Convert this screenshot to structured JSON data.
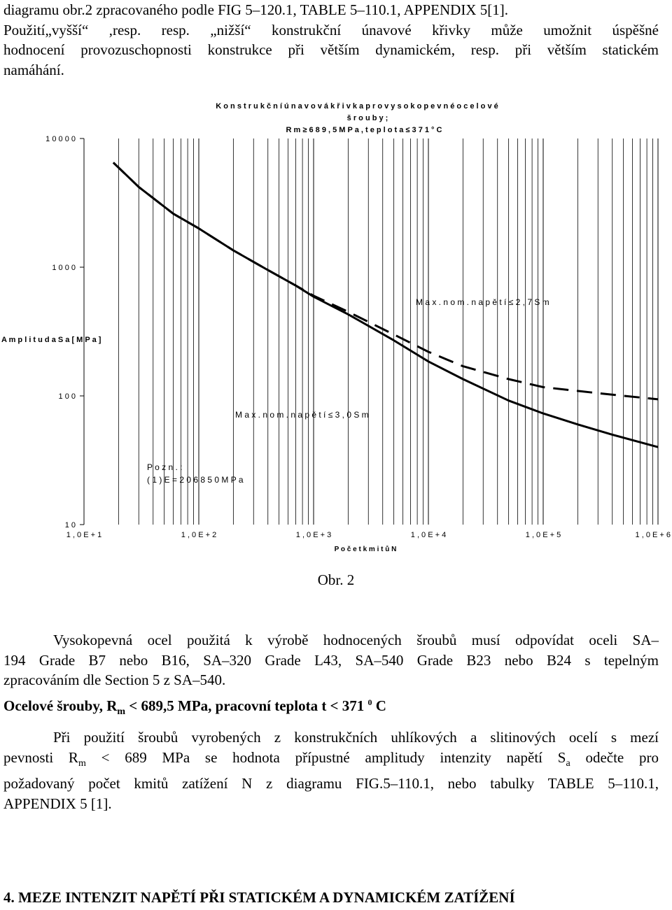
{
  "intro_paragraph": [
    "diagramu obr.2 zpracovaného podle FIG 5–120.1, TABLE 5–110.1, APPENDIX 5[1].",
    "Použití„vyšší“ ,resp. resp. „nižší“ konstrukční únavové křivky může umožnit úspěšné",
    "hodnocení provozuschopnosti konstrukce při větším dynamickém, resp. při větším statickém",
    "namáhání."
  ],
  "chart_data": {
    "type": "line",
    "title": "K o n s t r u k č n í   ú n a v o v á   k ř i v k a   p r o   v y s o k o p e v n é   o c e l o v é",
    "title_line2": "š r o u b y ;",
    "title_line3": "R m   ≥   6 8 9 , 5   M P a ,  t e p l o t a   ≤   3 7 1  ° C",
    "xlabel": "P o č e t  k m i t ů   N",
    "ylabel": "A m p l i t u d a   S a  [ M P a ]",
    "x_scale": "log",
    "y_scale": "log",
    "xlim": [
      10,
      1000000
    ],
    "ylim": [
      10,
      10000
    ],
    "x_tick_labels": [
      "1 , 0 E + 1",
      "1 , 0 E + 2",
      "1 , 0 E + 3",
      "1 , 0 E + 4",
      "1 , 0 E + 5",
      "1 , 0 E + 6"
    ],
    "x_ticks": [
      10,
      100,
      1000,
      10000,
      100000,
      1000000
    ],
    "y_tick_labels": [
      "1 0",
      "1 0 0",
      "1 0 0 0",
      "1 0 0 0 0"
    ],
    "y_ticks": [
      10,
      100,
      1000,
      10000
    ],
    "grid": true,
    "series": [
      {
        "name": "M a x .  n o m .  n a p ě t í   ≤   2 , 7  S m",
        "style": "dashed",
        "x": [
          18,
          30,
          60,
          100,
          200,
          400,
          700,
          1000,
          2000,
          5000,
          10000,
          20000,
          50000,
          100000,
          300000,
          1000000
        ],
        "y": [
          6500,
          4200,
          2600,
          2000,
          1350,
          950,
          720,
          600,
          450,
          300,
          220,
          170,
          135,
          117,
          105,
          94
        ]
      },
      {
        "name": "M a x .  n o m .  n a p ě t í   ≤   3 , 0  S m",
        "style": "solid",
        "x": [
          18,
          30,
          60,
          100,
          200,
          400,
          700,
          1000,
          2000,
          5000,
          10000,
          20000,
          50000,
          100000,
          200000,
          400000,
          1000000
        ],
        "y": [
          6500,
          4200,
          2600,
          2000,
          1350,
          950,
          720,
          590,
          430,
          270,
          185,
          135,
          92,
          73,
          60,
          50,
          40
        ]
      }
    ],
    "annotations": {
      "note_title": "P o z n . :",
      "note_text": "( 1 )  E   =   2 0 6 8 5 0   M P a"
    }
  },
  "caption": "Obr. 2",
  "paragraph2": [
    "Vysokopevná ocel použitá k výrobě hodnocených šroubů musí odpovídat oceli SA–",
    "194 Grade B7 nebo B16, SA–320 Grade L43, SA–540 Grade B23 nebo B24 s tepelným",
    "zpracováním dle Section 5 z SA–540."
  ],
  "heading1": {
    "prefix": "Ocelové šrouby, R",
    "sub": "m",
    "middle": " < 689,5 MPa, pracovní teplota t < 371 ",
    "sup": "0",
    "suffix": " C"
  },
  "paragraph3": {
    "line1": "Při použití šroubů vyrobených z konstrukčních uhlíkových a slitinových ocelí s mezí",
    "line2_a": "pevnosti R",
    "line2_sub": "m",
    "line2_b": " < 689 MPa se hodnota přípustné amplitudy intenzity napětí S",
    "line2_sub2": "a",
    "line2_c": " odečte pro",
    "line3": "požadovaný počet kmitů zatížení N z diagramu FIG.5–110.1, nebo tabulky TABLE 5–110.1,",
    "line4": "APPENDIX 5 [1]."
  },
  "heading2": "4. MEZE INTENZIT NAPĚTÍ PŘI STATICKÉM A DYNAMICKÉM ZATÍŽENÍ"
}
